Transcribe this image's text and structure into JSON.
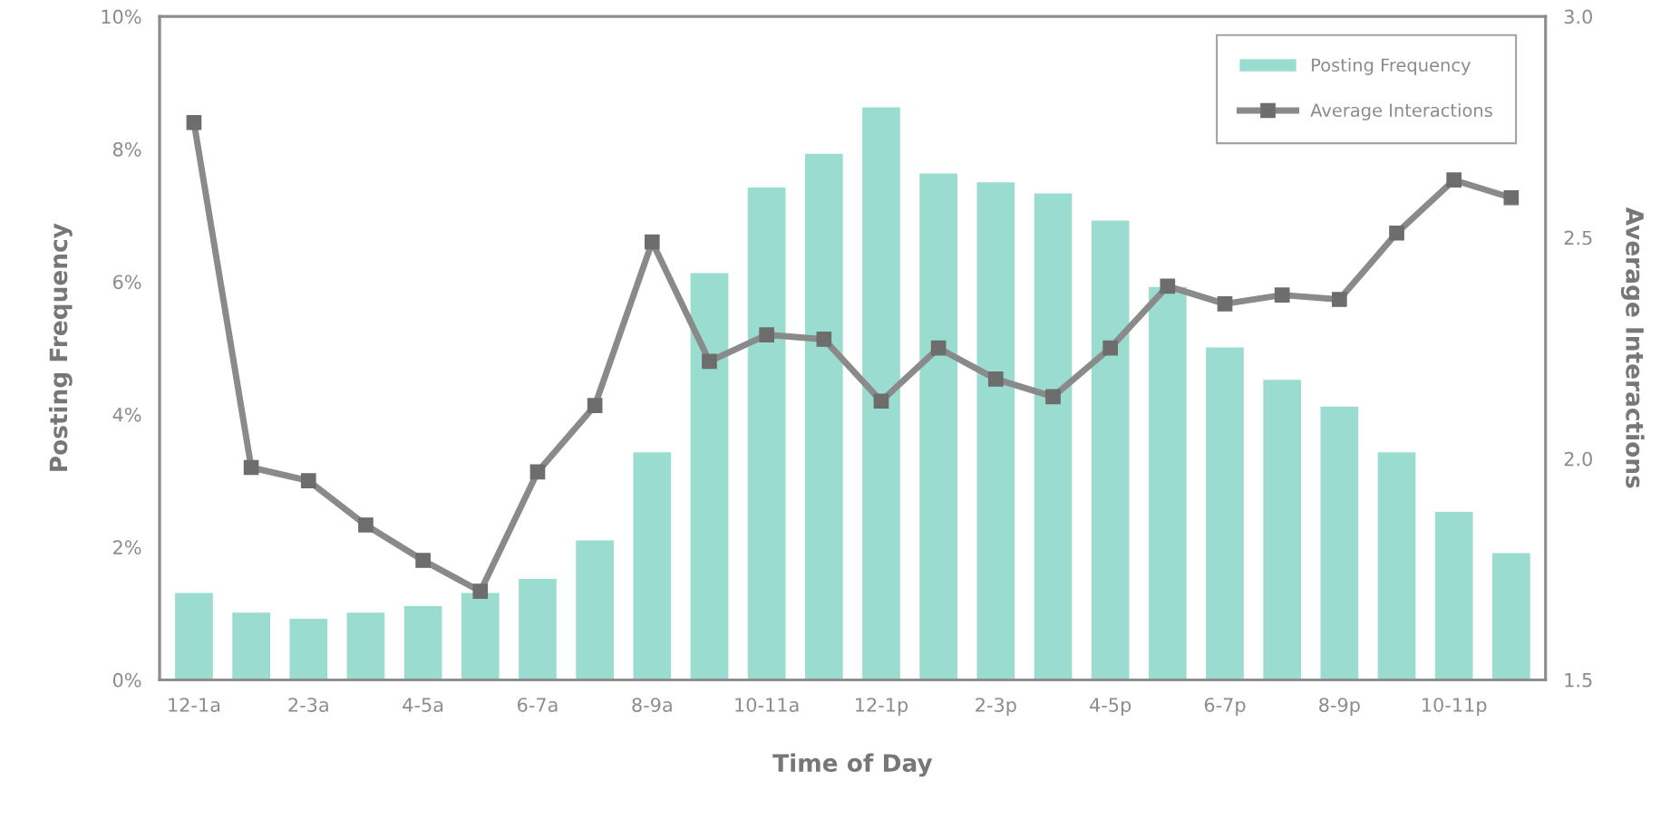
{
  "chart_data": {
    "type": "bar",
    "xlabel": "Time of Day",
    "ylabel": "Posting Frequency",
    "y2label": "Average Interactions",
    "categories": [
      "12-1a",
      null,
      "2-3a",
      null,
      "4-5a",
      null,
      "6-7a",
      null,
      "8-9a",
      null,
      "10-11a",
      null,
      "12-1p",
      null,
      "2-3p",
      null,
      "4-5p",
      null,
      "6-7p",
      null,
      "8-9p",
      null,
      "10-11p",
      null
    ],
    "series": [
      {
        "name": "Posting Frequency",
        "color": "#9adccf",
        "values": [
          1.31,
          1.01,
          0.92,
          1.01,
          1.11,
          1.31,
          1.52,
          2.1,
          3.43,
          6.13,
          7.42,
          7.93,
          8.63,
          7.63,
          7.5,
          7.33,
          6.92,
          5.92,
          5.01,
          4.52,
          4.12,
          3.43,
          2.53,
          1.91
        ]
      },
      {
        "name": "Average Interactions",
        "type": "line",
        "axis": "y2",
        "color": "#8a8a8a",
        "marker": "square",
        "values": [
          2.76,
          1.98,
          1.95,
          1.85,
          1.77,
          1.7,
          1.97,
          2.12,
          2.49,
          2.22,
          2.28,
          2.27,
          2.13,
          2.25,
          2.18,
          2.14,
          2.25,
          2.39,
          2.35,
          2.37,
          2.36,
          2.51,
          2.63,
          2.59
        ]
      }
    ],
    "ylim": [
      0,
      10
    ],
    "yticks": [
      {
        "value": 0,
        "label": "0%"
      },
      {
        "value": 2,
        "label": "2%"
      },
      {
        "value": 4,
        "label": "4%"
      },
      {
        "value": 6,
        "label": "6%"
      },
      {
        "value": 8,
        "label": "8%"
      },
      {
        "value": 10,
        "label": "10%"
      }
    ],
    "y2lim": [
      1.5,
      3.0
    ],
    "y2ticks": [
      {
        "value": 1.5,
        "label": "1.5"
      },
      {
        "value": 2.0,
        "label": "2.0"
      },
      {
        "value": 2.5,
        "label": "2.5"
      },
      {
        "value": 3.0,
        "label": "3.0"
      }
    ],
    "grid": false,
    "legend": "top right"
  }
}
